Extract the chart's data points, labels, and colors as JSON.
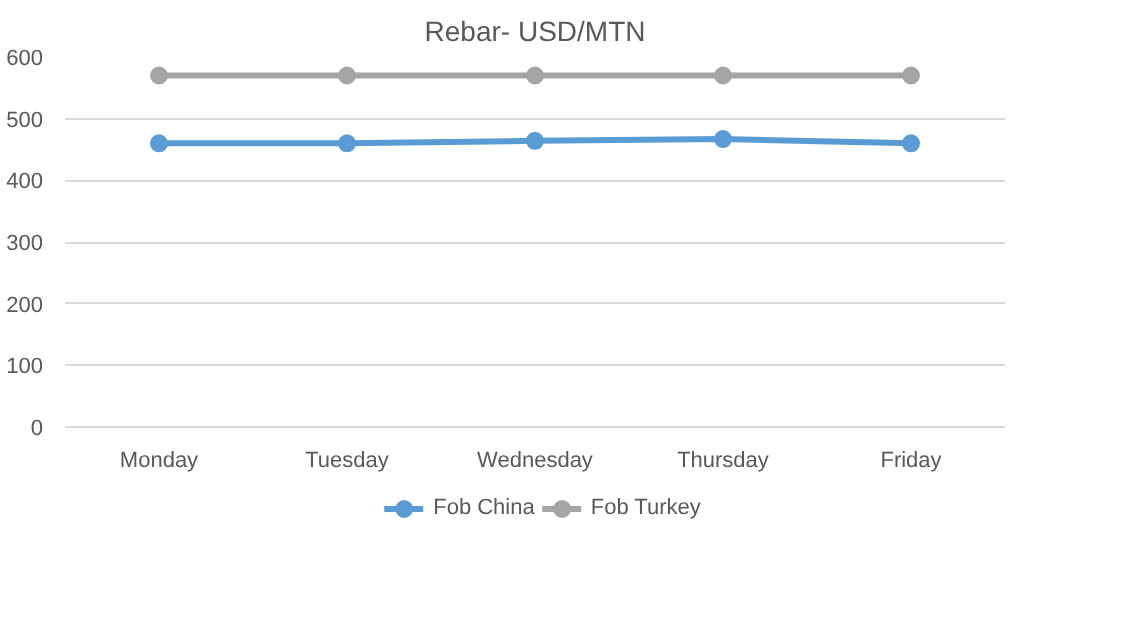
{
  "chart_data": {
    "type": "line",
    "title": "Rebar- USD/MTN",
    "categories": [
      "Monday",
      "Tuesday",
      "Wednesday",
      "Thursday",
      "Friday"
    ],
    "series": [
      {
        "name": "Fob China",
        "color": "#5b9bd5",
        "values": [
          460,
          460,
          464,
          467,
          460
        ]
      },
      {
        "name": "Fob Turkey",
        "color": "#a5a5a5",
        "values": [
          570,
          570,
          570,
          570,
          570
        ]
      }
    ],
    "ylim": [
      0,
      600
    ],
    "yticks": [
      0,
      100,
      200,
      300,
      400,
      500,
      600
    ],
    "grid": "y",
    "legend": "bottom",
    "marker": "circle",
    "line_style": "solid"
  }
}
